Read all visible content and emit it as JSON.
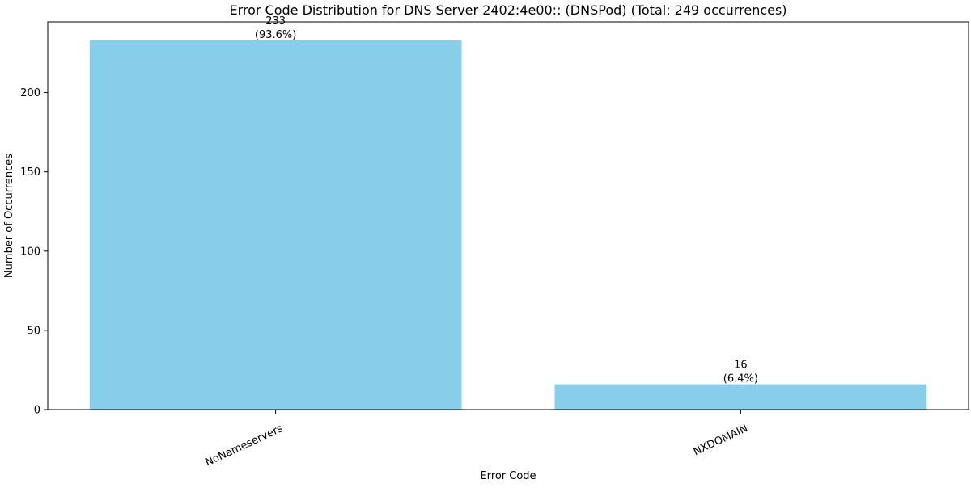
{
  "chart_data": {
    "type": "bar",
    "title": "Error Code Distribution for DNS Server 2402:4e00:: (DNSPod) (Total: 249 occurrences)",
    "xlabel": "Error Code",
    "ylabel": "Number of Occurrences",
    "categories": [
      "NoNameservers",
      "NXDOMAIN"
    ],
    "values": [
      233,
      16
    ],
    "value_labels": [
      "233",
      "16"
    ],
    "percent_labels": [
      "(93.6%)",
      "(6.4%)"
    ],
    "ylim": [
      0,
      244.65
    ],
    "yticks": [
      0,
      50,
      100,
      150,
      200
    ],
    "ytick_labels": [
      "0",
      "50",
      "100",
      "150",
      "200"
    ],
    "grid": false,
    "bar_color": "#87ceeb",
    "xtick_rotation_deg": 25
  }
}
